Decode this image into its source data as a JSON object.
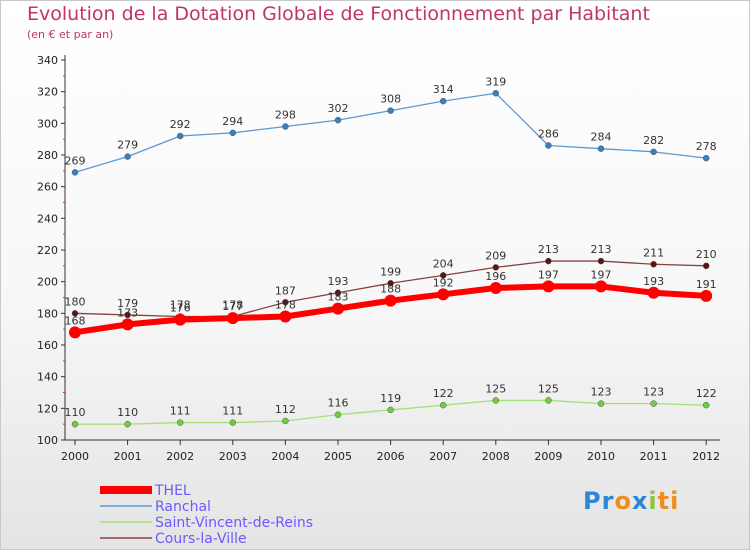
{
  "title": "Evolution de la Dotation Globale de Fonctionnement par Habitant",
  "subtitle": "(en € et par an)",
  "logo": {
    "parts": [
      {
        "text": "Pr",
        "color": "#2e86d9"
      },
      {
        "text": "o",
        "color": "#f28c1e"
      },
      {
        "text": "x",
        "color": "#2e86d9"
      },
      {
        "text": "i",
        "color": "#8cc63f"
      },
      {
        "text": "ti",
        "color": "#f28c1e"
      }
    ]
  },
  "chart_data": {
    "type": "line",
    "title": "Evolution de la Dotation Globale de Fonctionnement par Habitant",
    "subtitle": "(en € et par an)",
    "x": [
      "2000",
      "2001",
      "2002",
      "2003",
      "2004",
      "2005",
      "2006",
      "2007",
      "2008",
      "2009",
      "2010",
      "2011",
      "2012"
    ],
    "yticks": [
      "100",
      "120",
      "140",
      "160",
      "180",
      "200",
      "220",
      "240",
      "260",
      "280",
      "300",
      "320",
      "340"
    ],
    "ylim": [
      100,
      340
    ],
    "grid": false,
    "legend_position": "bottom-left",
    "series": [
      {
        "name": "Ranchal",
        "color": "#5b9bd5",
        "marker": "#3a7fc0",
        "width": 1.3,
        "values": [
          269,
          279,
          292,
          294,
          298,
          302,
          308,
          314,
          319,
          286,
          284,
          282,
          278
        ],
        "labels": [
          "269",
          "279",
          "292",
          "294",
          "298",
          "302",
          "308",
          "314",
          "319",
          "286",
          "284",
          "282",
          "278"
        ]
      },
      {
        "name": "Saint-Vincent-de-Reins",
        "color": "#a6e07a",
        "marker": "#6fcf3a",
        "width": 1.3,
        "values": [
          110,
          110,
          111,
          111,
          112,
          116,
          119,
          122,
          125,
          125,
          123,
          123,
          122
        ],
        "labels": [
          "110",
          "110",
          "111",
          "111",
          "112",
          "116",
          "119",
          "122",
          "125",
          "125",
          "123",
          "123",
          "122"
        ]
      },
      {
        "name": "Cours-la-Ville",
        "color": "#8b4040",
        "marker": "#5a1414",
        "width": 1.3,
        "values": [
          180,
          179,
          178,
          178,
          187,
          193,
          199,
          204,
          209,
          213,
          213,
          211,
          210
        ],
        "labels": [
          "180",
          "179",
          "178",
          "178",
          "187",
          "193",
          "199",
          "204",
          "209",
          "213",
          "213",
          "211",
          "210"
        ]
      },
      {
        "name": "THEL",
        "color": "#ff0000",
        "marker": "#ff0000",
        "width": 6,
        "values": [
          168,
          173,
          176,
          177,
          178,
          183,
          188,
          192,
          196,
          197,
          197,
          193,
          191
        ],
        "labels": [
          "168",
          "173",
          "176",
          "177",
          "178",
          "183",
          "188",
          "192",
          "196",
          "197",
          "197",
          "193",
          "191"
        ]
      }
    ],
    "legend": [
      {
        "name": "THEL",
        "color": "#ff0000",
        "width": 8
      },
      {
        "name": "Ranchal",
        "color": "#5b9bd5",
        "width": 1.5
      },
      {
        "name": "Saint-Vincent-de-Reins",
        "color": "#a6e07a",
        "width": 1.5
      },
      {
        "name": "Cours-la-Ville",
        "color": "#8b4040",
        "width": 1.5
      }
    ]
  }
}
